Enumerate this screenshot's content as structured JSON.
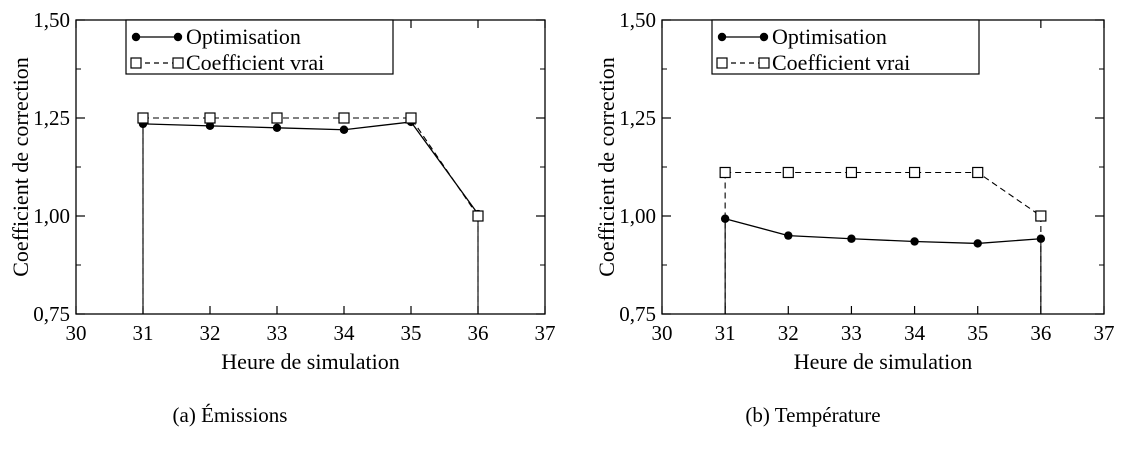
{
  "chart_data": [
    {
      "type": "line",
      "caption": "(a) Émissions",
      "xlabel": "Heure de simulation",
      "ylabel": "Coefficient de correction",
      "xlim": [
        30,
        37
      ],
      "ylim": [
        0.75,
        1.5
      ],
      "x_ticks": [
        30,
        31,
        32,
        33,
        34,
        35,
        36,
        37
      ],
      "x_tick_labels": [
        "30",
        "31",
        "32",
        "33",
        "34",
        "35",
        "36",
        "37"
      ],
      "y_ticks": [
        0.75,
        1.0,
        1.25,
        1.5
      ],
      "y_tick_labels": [
        "0,75",
        "1,00",
        "1,25",
        "1,50"
      ],
      "legend_position": "top-left",
      "series": [
        {
          "name": "Optimisation",
          "style": "solid-filled-circle",
          "x": [
            31,
            32,
            33,
            34,
            35,
            36
          ],
          "y": [
            1.235,
            1.23,
            1.225,
            1.22,
            1.24,
            1.005
          ]
        },
        {
          "name": "Coefficient vrai",
          "style": "dashed-open-square",
          "x": [
            31,
            32,
            33,
            34,
            35,
            36
          ],
          "y": [
            1.25,
            1.25,
            1.25,
            1.25,
            1.25,
            1.0
          ]
        }
      ]
    },
    {
      "type": "line",
      "caption": "(b) Température",
      "xlabel": "Heure de simulation",
      "ylabel": "Coefficient de correction",
      "xlim": [
        30,
        37
      ],
      "ylim": [
        0.75,
        1.5
      ],
      "x_ticks": [
        30,
        31,
        32,
        33,
        34,
        35,
        36,
        37
      ],
      "x_tick_labels": [
        "30",
        "31",
        "32",
        "33",
        "34",
        "35",
        "36",
        "37"
      ],
      "y_ticks": [
        0.75,
        1.0,
        1.25,
        1.5
      ],
      "y_tick_labels": [
        "0,75",
        "1,00",
        "1,25",
        "1,50"
      ],
      "legend_position": "top-left",
      "series": [
        {
          "name": "Optimisation",
          "style": "solid-filled-circle",
          "x": [
            31,
            32,
            33,
            34,
            35,
            36
          ],
          "y": [
            0.993,
            0.95,
            0.942,
            0.935,
            0.93,
            0.942
          ]
        },
        {
          "name": "Coefficient vrai",
          "style": "dashed-open-square",
          "x": [
            31,
            32,
            33,
            34,
            35,
            36
          ],
          "y": [
            1.111,
            1.111,
            1.111,
            1.111,
            1.111,
            1.0
          ]
        }
      ]
    }
  ]
}
